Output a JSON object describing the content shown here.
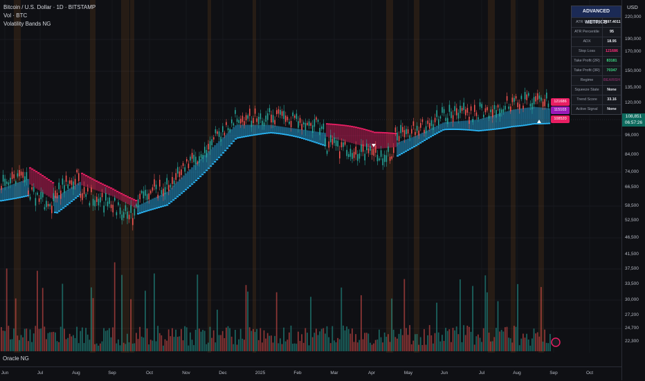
{
  "header": {
    "title": "Bitcoin / U.S. Dollar · 1D · BITSTAMP",
    "volume_label": "Vol · BTC",
    "indicator": "Volatility Bands NG"
  },
  "footer_indicator": "Oracle NG",
  "price_axis": {
    "currency": "USD",
    "ticks": [
      "220,000",
      "190,000",
      "170,000",
      "150,000",
      "135,000",
      "120,000",
      "108,851",
      "96,000",
      "84,000",
      "74,000",
      "66,500",
      "58,500",
      "52,500",
      "46,500",
      "41,500",
      "37,500",
      "33,500",
      "30,000",
      "27,200",
      "24,700",
      "22,300"
    ],
    "last_price": "108,851",
    "countdown": "06:57:26"
  },
  "time_axis": {
    "ticks": [
      "Jun",
      "Jul",
      "Aug",
      "Sep",
      "Oct",
      "Nov",
      "Dec",
      "2025",
      "Feb",
      "Mar",
      "Apr",
      "May",
      "Jun",
      "Jul",
      "Aug",
      "Sep",
      "Oct"
    ]
  },
  "metrics": {
    "title": "ADVANCED METRICS",
    "rows": [
      {
        "label": "ATR Volatility",
        "value": "3497.4011",
        "style": ""
      },
      {
        "label": "ATR Percentile",
        "value": "95",
        "style": ""
      },
      {
        "label": "ADX",
        "value": "18.95",
        "style": ""
      },
      {
        "label": "Stop Loss",
        "value": "121686",
        "style": "red"
      },
      {
        "label": "Take Profit (2R)",
        "value": "83181",
        "style": "green"
      },
      {
        "label": "Take Profit (3R)",
        "value": "70347",
        "style": "green"
      },
      {
        "label": "Regime",
        "value": "BEARISH",
        "style": "purple"
      },
      {
        "label": "Squeeze State",
        "value": "None",
        "style": ""
      },
      {
        "label": "Trend Score",
        "value": "33.16",
        "style": ""
      },
      {
        "label": "Active Signal",
        "value": "None",
        "style": ""
      }
    ]
  },
  "level_tags": {
    "stop": "121686",
    "mid": "115103",
    "low": "108520"
  },
  "colors": {
    "bull_band": "#29b6f6",
    "bear_band": "#e91e63",
    "up_candle": "#26a69a",
    "down_candle": "#ef5350",
    "highlight_column": "#7a4a1a"
  },
  "chart_data": {
    "type": "line",
    "x": [
      "Jun",
      "Jul",
      "Aug",
      "Sep",
      "Oct",
      "Nov",
      "Dec",
      "2025",
      "Feb",
      "Mar",
      "Apr",
      "May",
      "Jun",
      "Jul",
      "Aug",
      "Sep"
    ],
    "series": [
      {
        "values": [
          69000,
          62000,
          60000,
          59000,
          63000,
          69000,
          97000,
          96000,
          98000,
          86000,
          82000,
          95000,
          105000,
          108000,
          117000,
          110000
        ]
      }
    ]
  }
}
